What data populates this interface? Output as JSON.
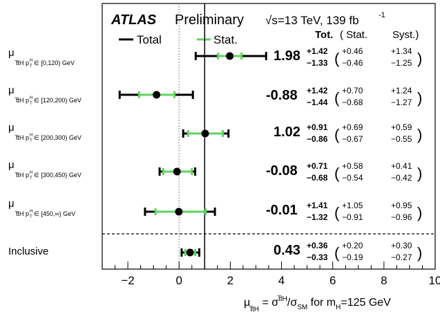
{
  "header": {
    "experiment": "ATLAS",
    "status": "Preliminary",
    "energy": "√s=13 TeV, 139 fb",
    "energy_sup": "-1"
  },
  "legend": {
    "total_label": "Total",
    "stat_label": "Stat.",
    "total_color": "#000000",
    "stat_color": "#5fd35f"
  },
  "column_headers": {
    "tot": "Tot.",
    "stat": "( Stat.",
    "syst": "Syst.)"
  },
  "x_axis": {
    "label_prefix": "μ",
    "label_rest": " = σ",
    "label_sub_tth": "t̅tH",
    "label_div": "/σ",
    "label_sub_sm": "SM",
    "label_tail": " for m",
    "label_sub_h": "H",
    "label_value": "=125 GeV",
    "tick_labels": [
      "−2",
      "0",
      "2",
      "4",
      "6",
      "8",
      "10"
    ]
  },
  "rows": [
    {
      "mu": "μ",
      "sub": "t̅tH p",
      "sub_t": "T",
      "sup_h": "H",
      "bin": "∈ [0,120) GeV",
      "value_label": "1.98",
      "tot_up": "+1.42",
      "tot_dn": "−1.33",
      "stat_up": "+0.46",
      "stat_dn": "−0.46",
      "syst_up": "+1.34",
      "syst_dn": "−1.25"
    },
    {
      "mu": "μ",
      "sub": "t̅tH p",
      "sub_t": "T",
      "sup_h": "H",
      "bin": "∈ [120,200) GeV",
      "value_label": "-0.88",
      "tot_up": "+1.42",
      "tot_dn": "−1.44",
      "stat_up": "+0.70",
      "stat_dn": "−0.68",
      "syst_up": "+1.24",
      "syst_dn": "−1.27"
    },
    {
      "mu": "μ",
      "sub": "t̅tH p",
      "sub_t": "T",
      "sup_h": "H",
      "bin": "∈ [200,300) GeV",
      "value_label": "1.02",
      "tot_up": "+0.91",
      "tot_dn": "−0.86",
      "stat_up": "+0.69",
      "stat_dn": "−0.67",
      "syst_up": "+0.59",
      "syst_dn": "−0.55"
    },
    {
      "mu": "μ",
      "sub": "t̅tH p",
      "sub_t": "T",
      "sup_h": "H",
      "bin": "∈ [300,450) GeV",
      "value_label": "-0.08",
      "tot_up": "+0.71",
      "tot_dn": "−0.68",
      "stat_up": "+0.58",
      "stat_dn": "−0.54",
      "syst_up": "+0.41",
      "syst_dn": "−0.42"
    },
    {
      "mu": "μ",
      "sub": "t̅tH p",
      "sub_t": "T",
      "sup_h": "H",
      "bin": "∈ [450,∞) GeV",
      "value_label": "-0.01",
      "tot_up": "+1.41",
      "tot_dn": "−1.32",
      "stat_up": "+1.05",
      "stat_dn": "−0.91",
      "syst_up": "+0.95",
      "syst_dn": "−0.96"
    },
    {
      "label": "Inclusive",
      "value_label": "0.43",
      "tot_up": "+0.36",
      "tot_dn": "−0.33",
      "stat_up": "+0.20",
      "stat_dn": "−0.19",
      "syst_up": "+0.30",
      "syst_dn": "−0.27"
    }
  ],
  "chart_data": {
    "type": "scatter",
    "xlim": [
      -3,
      10
    ],
    "x_ticks": [
      -2,
      0,
      2,
      4,
      6,
      8,
      10
    ],
    "reference_line_x": 1,
    "zero_line_x": 0,
    "categories": [
      "p_T^H ∈ [0,120) GeV",
      "p_T^H ∈ [120,200) GeV",
      "p_T^H ∈ [200,300) GeV",
      "p_T^H ∈ [300,450) GeV",
      "p_T^H ∈ [450,∞) GeV",
      "Inclusive"
    ],
    "values": [
      1.98,
      -0.88,
      1.02,
      -0.08,
      -0.01,
      0.43
    ],
    "total_up": [
      1.42,
      1.42,
      0.91,
      0.71,
      1.41,
      0.36
    ],
    "total_down": [
      1.33,
      1.44,
      0.86,
      0.68,
      1.32,
      0.33
    ],
    "stat_up": [
      0.46,
      0.7,
      0.69,
      0.58,
      1.05,
      0.2
    ],
    "stat_down": [
      0.46,
      0.68,
      0.67,
      0.54,
      0.91,
      0.19
    ],
    "syst_up": [
      1.34,
      1.24,
      0.59,
      0.41,
      0.95,
      0.3
    ],
    "syst_down": [
      1.25,
      1.27,
      0.55,
      0.42,
      0.96,
      0.27
    ],
    "grid": false,
    "legend_position": "top-left"
  }
}
